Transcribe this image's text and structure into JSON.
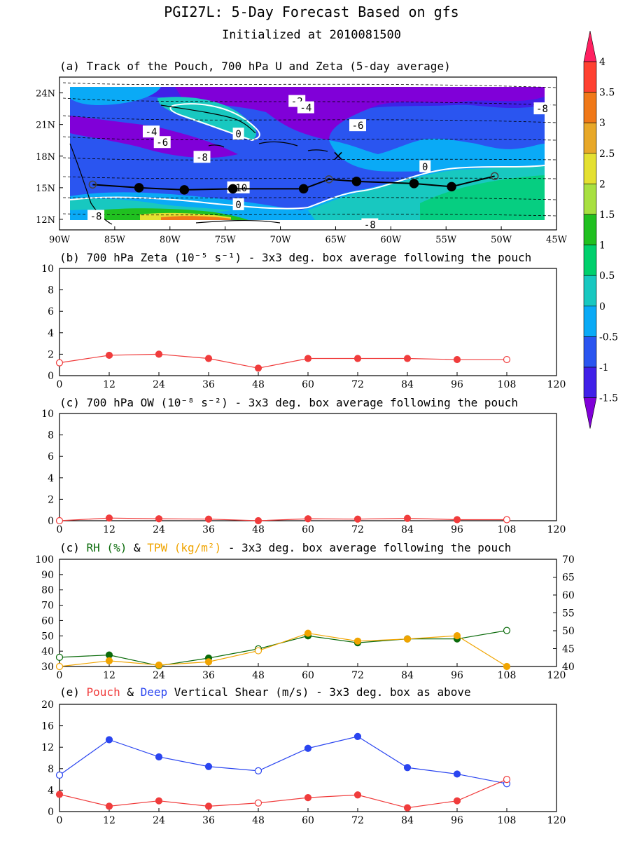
{
  "header": {
    "title": "PGI27L: 5-Day Forecast Based on gfs",
    "subtitle": "Initialized at 2010081500"
  },
  "colors": {
    "red": "#f03c3c",
    "blue": "#2a45f0",
    "green": "#0b6b0b",
    "orange": "#f0a400"
  },
  "chart_data": [
    {
      "type": "heatmap",
      "panel": "a",
      "title": "(a) Track of the Pouch, 700 hPa U and Zeta (5-day average)",
      "x_tick_labels": [
        "90W",
        "85W",
        "80W",
        "75W",
        "70W",
        "65W",
        "60W",
        "55W",
        "50W",
        "45W"
      ],
      "y_tick_labels": [
        "12N",
        "15N",
        "18N",
        "21N",
        "24N"
      ],
      "xlim": [
        -90,
        -45
      ],
      "ylim": [
        11,
        25.5
      ],
      "track": {
        "lon": [
          -87.0,
          -82.8,
          -78.7,
          -74.3,
          -67.9,
          -65.6,
          -63.1,
          -57.9,
          -54.5,
          -50.6
        ],
        "lat": [
          15.3,
          15.0,
          14.8,
          14.9,
          14.9,
          15.8,
          15.6,
          15.4,
          15.1,
          16.1
        ],
        "hollow": [
          true,
          false,
          false,
          false,
          false,
          true,
          false,
          false,
          false,
          true
        ]
      },
      "contour_labels": [
        {
          "text": "-2",
          "lon": -68.5,
          "lat": 23.2
        },
        {
          "text": "-4",
          "lon": -67.7,
          "lat": 22.6
        },
        {
          "text": "-8",
          "lon": -46.3,
          "lat": 22.5
        },
        {
          "text": "-6",
          "lon": -63.0,
          "lat": 20.9
        },
        {
          "text": "-4",
          "lon": -81.7,
          "lat": 20.3
        },
        {
          "text": "0",
          "lon": -73.8,
          "lat": 20.1
        },
        {
          "text": "-6",
          "lon": -80.7,
          "lat": 19.3
        },
        {
          "text": "-8",
          "lon": -77.1,
          "lat": 17.9
        },
        {
          "text": "0",
          "lon": -56.9,
          "lat": 17.0
        },
        {
          "text": "-10",
          "lon": -73.8,
          "lat": 15.0
        },
        {
          "text": "0",
          "lon": -73.8,
          "lat": 13.4
        },
        {
          "text": "-8",
          "lon": -86.7,
          "lat": 12.3
        },
        {
          "text": "-8",
          "lon": -61.9,
          "lat": 11.5
        }
      ],
      "colorbar": {
        "labels": [
          "4",
          "3.5",
          "3",
          "2.5",
          "2",
          "1.5",
          "1",
          "0.5",
          "0",
          "-0.5",
          "-1",
          "-1.5"
        ],
        "colors": [
          "#ff2060",
          "#ff4030",
          "#f07818",
          "#e8a828",
          "#e4e030",
          "#a8e040",
          "#20c020",
          "#00d06c",
          "#18c8c0",
          "#0aaaf6",
          "#2a55f0",
          "#4020e8",
          "#8000d8"
        ]
      }
    },
    {
      "type": "line",
      "panel": "b",
      "title": "(b) 700 hPa Zeta (10⁻⁵ s⁻¹) - 3x3 deg. box average following the pouch",
      "x": [
        0,
        12,
        24,
        36,
        48,
        60,
        72,
        84,
        96,
        108
      ],
      "xticks": [
        "0",
        "12",
        "24",
        "36",
        "48",
        "60",
        "72",
        "84",
        "96",
        "108",
        "120"
      ],
      "yticks": [
        "0",
        "2",
        "4",
        "6",
        "8",
        "10"
      ],
      "ylim": [
        0,
        10
      ],
      "xlim": [
        0,
        120
      ],
      "series": [
        {
          "color": "red",
          "values": [
            1.2,
            1.9,
            2.0,
            1.6,
            0.7,
            1.6,
            1.6,
            1.6,
            1.5,
            1.5
          ],
          "hollow": [
            0,
            9
          ]
        }
      ]
    },
    {
      "type": "line",
      "panel": "c",
      "title": "(c) 700 hPa OW (10⁻⁸ s⁻²) - 3x3 deg. box average following the pouch",
      "x": [
        0,
        12,
        24,
        36,
        48,
        60,
        72,
        84,
        96,
        108
      ],
      "xticks": [
        "0",
        "12",
        "24",
        "36",
        "48",
        "60",
        "72",
        "84",
        "96",
        "108",
        "120"
      ],
      "yticks": [
        "0",
        "2",
        "4",
        "6",
        "8",
        "10"
      ],
      "ylim": [
        0,
        10
      ],
      "xlim": [
        0,
        120
      ],
      "series": [
        {
          "color": "red",
          "values": [
            0.0,
            0.25,
            0.18,
            0.15,
            0.0,
            0.18,
            0.15,
            0.22,
            0.1,
            0.1
          ],
          "hollow": [
            0,
            9
          ]
        }
      ]
    },
    {
      "type": "line",
      "panel": "d",
      "title_parts": [
        "(c) ",
        "RH (%)",
        " & ",
        "TPW (kg/m²)",
        " - 3x3 deg. box average following the pouch"
      ],
      "x": [
        0,
        12,
        24,
        36,
        48,
        60,
        72,
        84,
        96,
        108
      ],
      "xticks": [
        "0",
        "12",
        "24",
        "36",
        "48",
        "60",
        "72",
        "84",
        "96",
        "108",
        "120"
      ],
      "yticks": [
        "30",
        "40",
        "50",
        "60",
        "70",
        "80",
        "90",
        "100"
      ],
      "ylim": [
        30,
        100
      ],
      "y2ticks": [
        "40",
        "45",
        "50",
        "55",
        "60",
        "65",
        "70"
      ],
      "y2lim": [
        40,
        70
      ],
      "xlim": [
        0,
        120
      ],
      "series": [
        {
          "color": "green",
          "axis": "left",
          "values": [
            36,
            37.5,
            30.5,
            35.5,
            41.5,
            50,
            45.5,
            48,
            48,
            53.5
          ],
          "hollow": [
            0,
            4,
            9
          ]
        },
        {
          "color": "orange",
          "axis": "right",
          "values": [
            40,
            41.6,
            40.4,
            41.3,
            44.4,
            49.3,
            47.1,
            47.7,
            48.6,
            40.0
          ],
          "hollow": [
            0,
            4
          ]
        }
      ]
    },
    {
      "type": "line",
      "panel": "e",
      "title_parts": [
        "(e) ",
        "Pouch",
        " & ",
        "Deep",
        " Vertical Shear (m/s) - 3x3 deg. box as above"
      ],
      "x": [
        0,
        12,
        24,
        36,
        48,
        60,
        72,
        84,
        96,
        108
      ],
      "xticks": [
        "0",
        "12",
        "24",
        "36",
        "48",
        "60",
        "72",
        "84",
        "96",
        "108",
        "120"
      ],
      "yticks": [
        "0",
        "4",
        "8",
        "12",
        "16",
        "20"
      ],
      "ylim": [
        0,
        20
      ],
      "xlim": [
        0,
        120
      ],
      "series": [
        {
          "color": "blue",
          "values": [
            6.8,
            13.4,
            10.2,
            8.4,
            7.6,
            11.8,
            14.0,
            8.2,
            7.0,
            5.2
          ],
          "hollow": [
            0,
            4,
            9
          ]
        },
        {
          "color": "red",
          "values": [
            3.2,
            1.0,
            2.0,
            1.0,
            1.6,
            2.6,
            3.1,
            0.7,
            2.0,
            6.0
          ],
          "hollow": [
            4,
            9
          ]
        }
      ]
    }
  ]
}
